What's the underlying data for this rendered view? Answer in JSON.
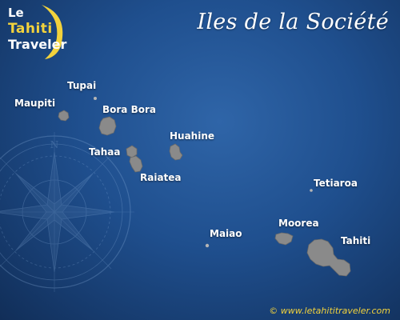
{
  "title": "Iles de la Société",
  "logo": {
    "line1": "Le",
    "line2": "Tahiti",
    "line3": "Traveler"
  },
  "islands": [
    {
      "name": "Tupai"
    },
    {
      "name": "Maupiti"
    },
    {
      "name": "Bora Bora"
    },
    {
      "name": "Huahine"
    },
    {
      "name": "Tahaa"
    },
    {
      "name": "Raiatea"
    },
    {
      "name": "Tetiaroa"
    },
    {
      "name": "Moorea"
    },
    {
      "name": "Maiao"
    },
    {
      "name": "Tahiti"
    }
  ],
  "copyright": "© www.letahititraveler.com",
  "colors": {
    "background": "#1f4f8e",
    "island_fill": "#8a8a8a",
    "label_text": "#ffffff",
    "accent_yellow": "#f2d23c"
  },
  "icons": [
    "compass-rose-icon",
    "logo-swoosh-icon"
  ]
}
